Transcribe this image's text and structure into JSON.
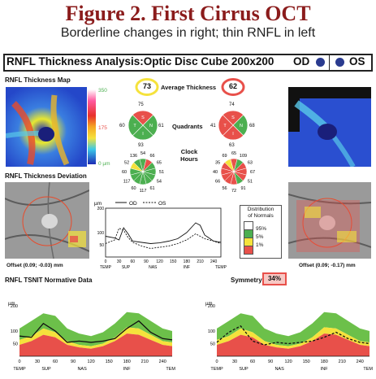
{
  "figure": {
    "title": "Figure 2. First Cirrus OCT",
    "subtitle": "Borderline changes in right; thin RNFL in left"
  },
  "header": {
    "title": "RNFL Thickness Analysis:Optic Disc Cube 200x200",
    "od_label": "OD",
    "os_label": "OS"
  },
  "thickness_map": {
    "label": "RNFL Thickness Map",
    "scale_top": "350",
    "scale_mid": "175",
    "scale_bottom": "0 µm"
  },
  "average_thickness": {
    "label": "Average Thickness",
    "od": "73",
    "os": "62"
  },
  "quadrants": {
    "label": "Quadrants",
    "od": {
      "S": "75",
      "N": "61",
      "I": "93",
      "T": "60"
    },
    "os": {
      "S": "74",
      "N": "68",
      "I": "63",
      "T": "41"
    }
  },
  "clock_hours": {
    "label_line1": "Clock",
    "label_line2": "Hours",
    "od": [
      "54",
      "66",
      "65",
      "51",
      "54",
      "61",
      "117",
      "60",
      "117",
      "60",
      "52",
      "136"
    ],
    "os": [
      "65",
      "109",
      "63",
      "67",
      "51",
      "91",
      "72",
      "56",
      "66",
      "40",
      "35",
      "69"
    ]
  },
  "deviation": {
    "label": "RNFL Thickness Deviation",
    "od_offset": "Offset (0.09; -0.03) mm",
    "os_offset": "Offset (0.09; -0.17) mm"
  },
  "legend": {
    "title_line1": "Distribution",
    "title_line2": "of Normals",
    "items": [
      "95%",
      "5%",
      "1%"
    ],
    "colors": [
      "#ffffff",
      "#4caf50",
      "#f5e23c",
      "#e8504a"
    ]
  },
  "symmetry": {
    "label": "Symmetry",
    "value": "34%"
  },
  "tsnit": {
    "label": "RNFL TSNIT Normative Data",
    "unit": "µm",
    "od_label": "OD",
    "os_label": "OS",
    "x_ticks": [
      "0",
      "30",
      "60",
      "90",
      "120",
      "150",
      "180",
      "210",
      "240"
    ],
    "y_ticks": [
      "200",
      "100",
      "50"
    ],
    "regions": [
      "TEMP",
      "SUP",
      "NAS",
      "INF",
      "TEMP"
    ]
  },
  "chart_data": [
    {
      "type": "line",
      "title": "",
      "x": [
        0,
        20,
        30,
        40,
        50,
        60,
        80,
        100,
        120,
        140,
        160,
        180,
        200,
        210,
        220,
        240,
        256
      ],
      "series": [
        {
          "name": "OD",
          "values": [
            85,
            78,
            70,
            120,
            95,
            65,
            60,
            55,
            58,
            65,
            75,
            100,
            140,
            130,
            90,
            65,
            60
          ]
        },
        {
          "name": "OS",
          "values": [
            55,
            70,
            118,
            110,
            80,
            60,
            45,
            35,
            40,
            45,
            55,
            70,
            95,
            85,
            75,
            65,
            55
          ]
        }
      ],
      "xlim": [
        0,
        256
      ],
      "ylim": [
        0,
        200
      ]
    },
    {
      "type": "area",
      "title": "",
      "x": [
        0,
        20,
        40,
        60,
        80,
        100,
        120,
        140,
        160,
        180,
        200,
        220,
        240,
        256
      ],
      "series": [
        {
          "name": "OD",
          "values": [
            80,
            75,
            130,
            100,
            55,
            60,
            55,
            60,
            70,
            110,
            140,
            95,
            70,
            65
          ]
        }
      ],
      "bands_upper": [
        110,
        140,
        170,
        160,
        110,
        90,
        80,
        95,
        130,
        175,
        170,
        140,
        110,
        100
      ],
      "bands_mid": [
        65,
        80,
        110,
        95,
        60,
        45,
        40,
        50,
        75,
        115,
        110,
        85,
        60,
        55
      ],
      "bands_low": [
        45,
        60,
        85,
        75,
        45,
        35,
        30,
        40,
        60,
        90,
        85,
        65,
        45,
        40
      ],
      "ylim": [
        0,
        200
      ]
    },
    {
      "type": "area",
      "title": "",
      "x": [
        0,
        20,
        40,
        60,
        80,
        100,
        120,
        140,
        160,
        180,
        200,
        220,
        240,
        256
      ],
      "series": [
        {
          "name": "OS",
          "values": [
            55,
            95,
            120,
            60,
            45,
            55,
            50,
            55,
            60,
            75,
            95,
            70,
            55,
            50
          ]
        }
      ],
      "bands_upper": [
        110,
        140,
        170,
        160,
        110,
        90,
        80,
        95,
        130,
        175,
        170,
        140,
        110,
        100
      ],
      "bands_mid": [
        65,
        80,
        110,
        95,
        60,
        45,
        40,
        50,
        75,
        115,
        110,
        85,
        60,
        55
      ],
      "bands_low": [
        45,
        60,
        85,
        75,
        45,
        35,
        30,
        40,
        60,
        90,
        85,
        65,
        45,
        40
      ],
      "ylim": [
        0,
        200
      ]
    }
  ]
}
